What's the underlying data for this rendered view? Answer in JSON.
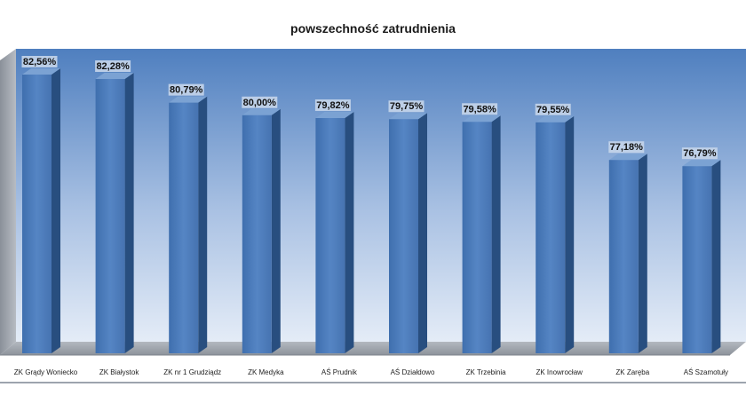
{
  "chart_data": {
    "type": "bar",
    "title": "powszechność zatrudnienia",
    "categories": [
      "ZK Grądy Woniecko",
      "ZK Białystok",
      "ZK nr 1 Grudziądz",
      "ZK Medyka",
      "AŚ Prudnik",
      "AŚ Działdowo",
      "ZK Trzebinia",
      "ZK Inowrocław",
      "ZK Zaręba",
      "AŚ Szamotuły"
    ],
    "values": [
      82.56,
      82.28,
      80.79,
      80.0,
      79.82,
      79.75,
      79.58,
      79.55,
      77.18,
      76.79
    ],
    "value_labels": [
      "82,56%",
      "82,28%",
      "80,79%",
      "80,00%",
      "79,82%",
      "79,75%",
      "79,58%",
      "79,55%",
      "77,18%",
      "76,79%"
    ],
    "xlabel": "",
    "ylabel": "",
    "ylim": [
      65,
      84
    ],
    "grid": false,
    "legend": "none",
    "colors": {
      "bar_front": "#4a79b8",
      "bar_side": "#284e7f",
      "bar_top": "#7ba2d3",
      "wall_top": "#4f7fbf",
      "wall_bottom": "#e4ecf7",
      "floor": "#9a9fa6",
      "label_bg": "#c5d5ea"
    }
  }
}
